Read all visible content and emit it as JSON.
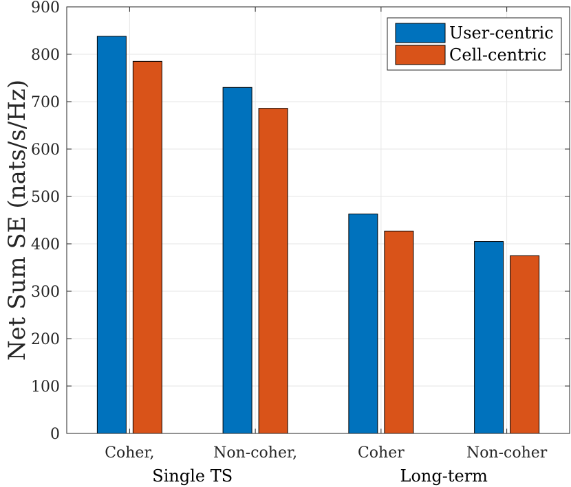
{
  "chart_data": {
    "type": "bar",
    "title": "",
    "xlabel": "",
    "ylabel": "Net Sum SE (nats/s/Hz)",
    "ylim": [
      0,
      900
    ],
    "yticks": [
      0,
      100,
      200,
      300,
      400,
      500,
      600,
      700,
      800,
      900
    ],
    "grid": true,
    "categories": [
      "Coher,",
      "Non-coher,",
      "Coher",
      "Non-coher"
    ],
    "category_groups": [
      {
        "label": "Single TS",
        "categories": [
          "Coher,",
          "Non-coher,"
        ]
      },
      {
        "label": "Long-term",
        "categories": [
          "Coher",
          "Non-coher"
        ]
      }
    ],
    "series": [
      {
        "name": "User-centric",
        "color": "#0072BD",
        "values": [
          838,
          730,
          463,
          405
        ]
      },
      {
        "name": "Cell-centric",
        "color": "#D95319",
        "values": [
          785,
          686,
          427,
          375
        ]
      }
    ],
    "legend_position": "top-right"
  }
}
